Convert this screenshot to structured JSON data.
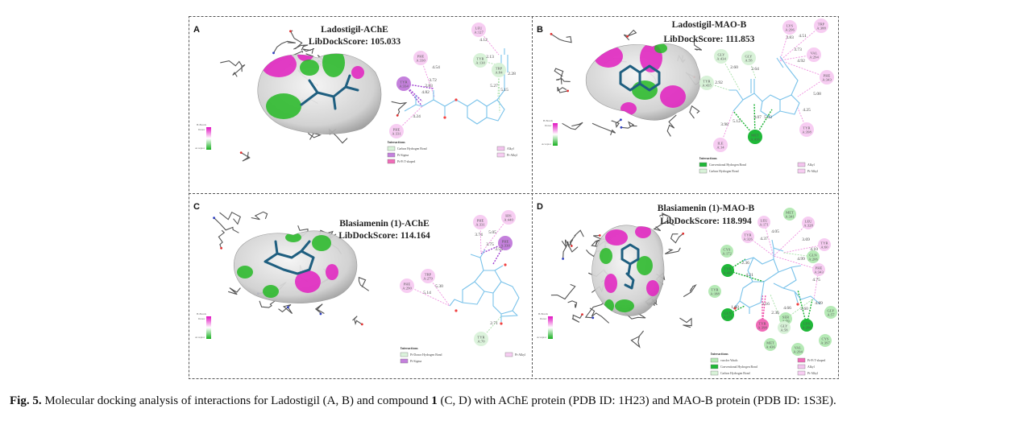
{
  "colors": {
    "pi-alkyl": "#f7cdf2",
    "alkyl": "#f4c4ee",
    "carbon-h": "#d8f2d8",
    "pi-donor-h": "#dcf3dc",
    "pi-sigma": "#c480dc",
    "pi-pi-t": "#f06cb8",
    "conventional-h": "#1fb838",
    "vdw": "#b6eab6",
    "ligand": "#79c2ea",
    "ligand_3d": "#1f5f80",
    "surface_donor": "#e21ec0",
    "surface_acceptor": "#25b825"
  },
  "figure": {
    "panels": [
      {
        "letter": "A",
        "title": "Ladostigil-AChE",
        "score": "LibDockScore: 105.033",
        "colorkey": {
          "title": "H-Bonds",
          "donor": "Donor",
          "acceptor": "Acceptor"
        },
        "residues": [
          {
            "name": "LEU",
            "id": "A:127",
            "type": "pi-alkyl"
          },
          {
            "name": "PHE",
            "id": "A:330",
            "type": "pi-alkyl"
          },
          {
            "name": "TYR",
            "id": "A:130",
            "type": "carbon-h"
          },
          {
            "name": "TRP",
            "id": "A:84",
            "type": "carbon-h"
          },
          {
            "name": "TYR",
            "id": "A:334",
            "type": "pi-sigma"
          },
          {
            "name": "PHE",
            "id": "A:331",
            "type": "pi-alkyl"
          }
        ],
        "distances": [
          "4.12",
          "4.54",
          "2.13",
          "3.72",
          "2.83",
          "4.82",
          "2.28",
          "5.27",
          "5.15",
          "4.24"
        ],
        "legend": {
          "heading": "Interactions",
          "items": [
            {
              "label": "Carbon Hydrogen Bond",
              "type": "carbon-h"
            },
            {
              "label": "Pi-Sigma",
              "type": "pi-sigma"
            },
            {
              "label": "Pi-Pi T-shaped",
              "type": "pi-pi-t"
            },
            {
              "label": "Alkyl",
              "type": "alkyl"
            },
            {
              "label": "Pi-Alkyl",
              "type": "pi-alkyl"
            }
          ]
        }
      },
      {
        "letter": "B",
        "title": "Ladostigil-MAO-B",
        "score": "LibDockScore: 111.853",
        "colorkey": {
          "title": "H-Bonds",
          "donor": "Donor",
          "acceptor": "Acceptor"
        },
        "residues": [
          {
            "name": "LYS",
            "id": "A:296",
            "type": "pi-alkyl"
          },
          {
            "name": "TRP",
            "id": "A:388",
            "type": "pi-alkyl"
          },
          {
            "name": "VAL",
            "id": "A:294",
            "type": "pi-alkyl"
          },
          {
            "name": "GLY",
            "id": "A:434",
            "type": "carbon-h"
          },
          {
            "name": "GLY",
            "id": "A:58",
            "type": "carbon-h"
          },
          {
            "name": "PHE",
            "id": "A:343",
            "type": "pi-alkyl"
          },
          {
            "name": "TYR",
            "id": "A:435",
            "type": "carbon-h"
          },
          {
            "name": "MET",
            "id": "A:436",
            "type": "conventional-h"
          },
          {
            "name": "ILE",
            "id": "A:14",
            "type": "pi-alkyl"
          },
          {
            "name": "TYR",
            "id": "A:398",
            "type": "pi-alkyl"
          }
        ],
        "distances": [
          "3.83",
          "4.51",
          "3.73",
          "4.92",
          "2.60",
          "2.64",
          "2.92",
          "5.08",
          "4.25",
          "3.98",
          "5.12",
          "3.07",
          "5.33"
        ],
        "legend": {
          "heading": "Interactions",
          "items": [
            {
              "label": "Conventional Hydrogen Bond",
              "type": "conventional-h"
            },
            {
              "label": "Carbon Hydrogen Bond",
              "type": "carbon-h"
            },
            {
              "label": "Alkyl",
              "type": "alkyl"
            },
            {
              "label": "Pi-Alkyl",
              "type": "pi-alkyl"
            }
          ]
        }
      },
      {
        "letter": "C",
        "title": "Blasiamenin (1)-AChE",
        "score": "LibDockScore: 114.164",
        "colorkey": {
          "title": "H-Bonds",
          "donor": "Donor",
          "acceptor": "Acceptor"
        },
        "residues": [
          {
            "name": "PHE",
            "id": "A:331",
            "type": "pi-alkyl"
          },
          {
            "name": "HIS",
            "id": "A:440",
            "type": "pi-alkyl"
          },
          {
            "name": "PHE",
            "id": "A:330",
            "type": "pi-sigma"
          },
          {
            "name": "TRP",
            "id": "A:279",
            "type": "pi-alkyl"
          },
          {
            "name": "PHE",
            "id": "A:290",
            "type": "pi-alkyl"
          },
          {
            "name": "TYR",
            "id": "A:70",
            "type": "pi-donor-h"
          }
        ],
        "distances": [
          "3.74",
          "5.05",
          "3.75",
          "3.55",
          "5.30",
          "5.14",
          "2.71"
        ],
        "legend": {
          "heading": "Interactions",
          "items": [
            {
              "label": "Pi-Donor Hydrogen Bond",
              "type": "pi-donor-h"
            },
            {
              "label": "Pi-Sigma",
              "type": "pi-sigma"
            },
            {
              "label": "Pi-Alkyl",
              "type": "pi-alkyl"
            }
          ]
        }
      },
      {
        "letter": "D",
        "title": "Blasiamenin (1)-MAO-B",
        "score": "LibDockScore: 118.994",
        "colorkey": {
          "title": "H-Bonds",
          "donor": "Donor",
          "acceptor": "Acceptor"
        },
        "residues": [
          {
            "name": "MET",
            "id": "A:341",
            "type": "vdw"
          },
          {
            "name": "LEU",
            "id": "A:171",
            "type": "pi-alkyl"
          },
          {
            "name": "LEU",
            "id": "A:328",
            "type": "pi-alkyl"
          },
          {
            "name": "TYR",
            "id": "A:326",
            "type": "pi-alkyl"
          },
          {
            "name": "CYS",
            "id": "A:172",
            "type": "vdw"
          },
          {
            "name": "TYR",
            "id": "A:60",
            "type": "pi-alkyl"
          },
          {
            "name": "GLN",
            "id": "A:206",
            "type": "vdw"
          },
          {
            "name": "PHE",
            "id": "A:343",
            "type": "pi-alkyl"
          },
          {
            "name": "TYR",
            "id": "A:435",
            "type": "conventional-h"
          },
          {
            "name": "TYR",
            "id": "A:188",
            "type": "vdw"
          },
          {
            "name": "GLN",
            "id": "A:171",
            "type": "conventional-h"
          },
          {
            "name": "TYR",
            "id": "A:398",
            "type": "pi-pi-t"
          },
          {
            "name": "SER",
            "id": "A:59",
            "type": "vdw"
          },
          {
            "name": "GLY",
            "id": "A:58",
            "type": "carbon-h"
          },
          {
            "name": "LYS",
            "id": "A:296",
            "type": "conventional-h"
          },
          {
            "name": "GLY",
            "id": "A:57",
            "type": "vdw"
          },
          {
            "name": "CYS",
            "id": "A:397",
            "type": "vdw"
          },
          {
            "name": "MET",
            "id": "A:436",
            "type": "vdw"
          },
          {
            "name": "VAL",
            "id": "A:294",
            "type": "vdw"
          }
        ],
        "distances": [
          "4.05",
          "4.37",
          "3.69",
          "4.10",
          "4.99",
          "2.36",
          "4.21",
          "4.75",
          "3.16",
          "1.60",
          "4.66",
          "2.36",
          "2.60",
          "4.89"
        ],
        "legend": {
          "heading": "Interactions",
          "items": [
            {
              "label": "van der Waals",
              "type": "vdw"
            },
            {
              "label": "Conventional Hydrogen Bond",
              "type": "conventional-h"
            },
            {
              "label": "Carbon Hydrogen Bond",
              "type": "carbon-h"
            },
            {
              "label": "Pi-Pi T-shaped",
              "type": "pi-pi-t"
            },
            {
              "label": "Alkyl",
              "type": "alkyl"
            },
            {
              "label": "Pi-Alkyl",
              "type": "pi-alkyl"
            }
          ]
        }
      }
    ]
  },
  "caption": {
    "label": "Fig. 5.",
    "text_before": " Molecular docking analysis of interactions for Ladostigil (A, B) and compound ",
    "bold": "1",
    "text_after": " (C, D) with AChE protein (PDB ID: 1H23) and MAO-B protein (PDB ID: 1S3E)."
  }
}
